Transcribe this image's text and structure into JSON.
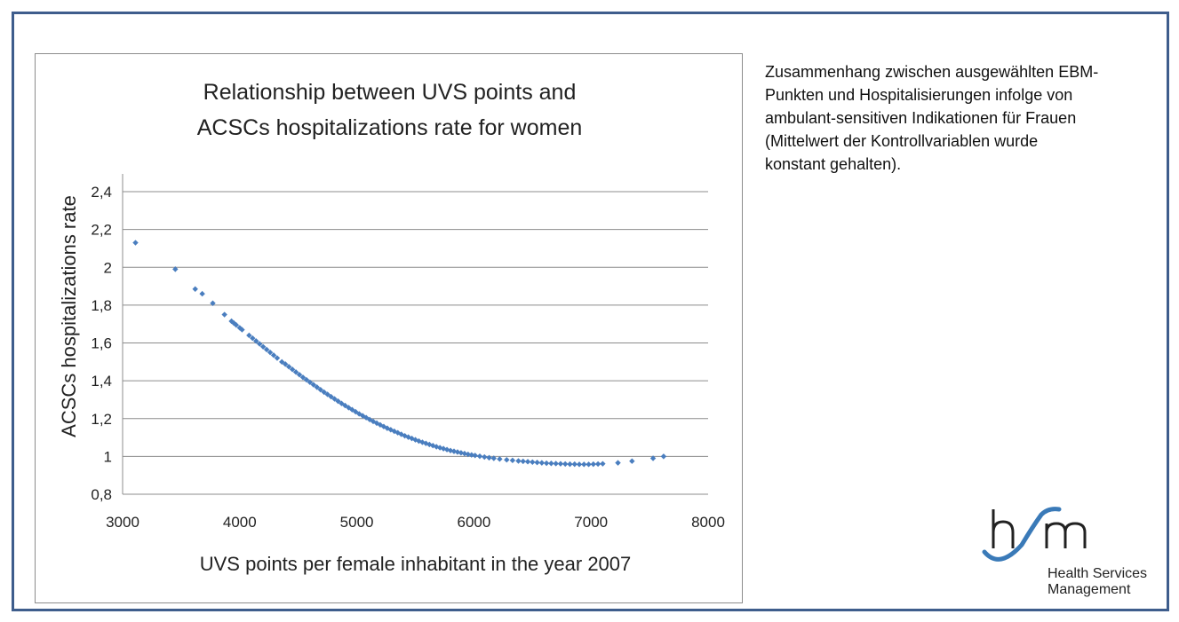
{
  "description": {
    "lines": [
      "Zusammenhang zwischen ausgewählten EBM-",
      "Punkten und Hospitalisierungen infolge von",
      "ambulant-sensitiven Indikationen für Frauen",
      "(Mittelwert der Kontrollvariablen wurde",
      "konstant gehalten)."
    ]
  },
  "logo": {
    "line1": "Health Services",
    "line2": "Management"
  },
  "colors": {
    "frame": "#3e5d8c",
    "marker": "#4a7ebf",
    "logo_blue": "#3a7ab8"
  },
  "chart_data": {
    "type": "scatter",
    "title_lines": [
      "Relationship between UVS points and",
      "ACSCs hospitalizations rate for women"
    ],
    "xlabel": "UVS points per female inhabitant in the year 2007",
    "ylabel": "ACSCs hospitalizations rate",
    "xlim": [
      3000,
      8000
    ],
    "ylim": [
      0.8,
      2.4
    ],
    "xticks": [
      3000,
      4000,
      5000,
      6000,
      7000,
      8000
    ],
    "yticks": [
      0.8,
      1,
      1.2,
      1.4,
      1.6,
      1.8,
      2,
      2.2,
      2.4
    ],
    "ytick_labels": [
      "0,8",
      "1",
      "1,2",
      "1,4",
      "1,6",
      "1,8",
      "2",
      "2,2",
      "2,4"
    ],
    "grid": "horizontal",
    "legend": "none",
    "x": [
      3110,
      3450,
      3620,
      3680,
      3770,
      3870,
      3930,
      3950,
      3970,
      4000,
      4020,
      4080,
      4110,
      4140,
      4170,
      4200,
      4230,
      4260,
      4290,
      4320,
      4360,
      4390,
      4420,
      4450,
      4480,
      4510,
      4540,
      4570,
      4600,
      4630,
      4660,
      4690,
      4720,
      4750,
      4780,
      4810,
      4840,
      4870,
      4900,
      4930,
      4960,
      4990,
      5020,
      5050,
      5080,
      5110,
      5140,
      5170,
      5200,
      5230,
      5260,
      5290,
      5320,
      5350,
      5380,
      5410,
      5440,
      5470,
      5500,
      5530,
      5560,
      5590,
      5620,
      5650,
      5680,
      5710,
      5740,
      5770,
      5800,
      5830,
      5860,
      5890,
      5920,
      5950,
      5980,
      6010,
      6050,
      6090,
      6130,
      6170,
      6220,
      6280,
      6330,
      6380,
      6420,
      6460,
      6500,
      6540,
      6580,
      6620,
      6660,
      6700,
      6740,
      6780,
      6820,
      6860,
      6900,
      6940,
      6980,
      7020,
      7060,
      7100,
      7230,
      7350,
      7530,
      7620
    ],
    "y": [
      2.13,
      1.99,
      1.885,
      1.86,
      1.81,
      1.75,
      1.715,
      1.705,
      1.695,
      1.68,
      1.67,
      1.64,
      1.625,
      1.61,
      1.595,
      1.58,
      1.565,
      1.55,
      1.535,
      1.52,
      1.5,
      1.488,
      1.474,
      1.46,
      1.446,
      1.432,
      1.418,
      1.405,
      1.392,
      1.379,
      1.366,
      1.353,
      1.34,
      1.328,
      1.316,
      1.304,
      1.292,
      1.28,
      1.269,
      1.258,
      1.247,
      1.236,
      1.225,
      1.215,
      1.205,
      1.195,
      1.185,
      1.176,
      1.167,
      1.158,
      1.149,
      1.141,
      1.133,
      1.125,
      1.117,
      1.109,
      1.102,
      1.095,
      1.088,
      1.081,
      1.075,
      1.069,
      1.063,
      1.057,
      1.051,
      1.046,
      1.041,
      1.036,
      1.031,
      1.027,
      1.023,
      1.019,
      1.015,
      1.011,
      1.008,
      1.005,
      1.001,
      0.997,
      0.993,
      0.99,
      0.986,
      0.982,
      0.979,
      0.976,
      0.974,
      0.972,
      0.97,
      0.968,
      0.966,
      0.964,
      0.963,
      0.962,
      0.961,
      0.96,
      0.959,
      0.959,
      0.958,
      0.958,
      0.958,
      0.959,
      0.96,
      0.961,
      0.966,
      0.975,
      0.99,
      1.0
    ]
  }
}
